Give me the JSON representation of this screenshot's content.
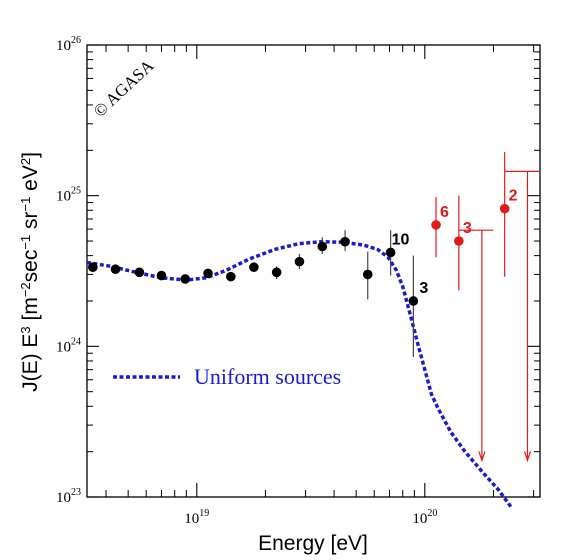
{
  "chart_data": {
    "type": "scatter",
    "watermark": "© AGASA",
    "xlabel": "Energy [eV]",
    "ylabel": {
      "prefix": "J(E) E",
      "prefix_sup": "3",
      "open": " [m",
      "open_sup": "−2",
      "mid1": "sec",
      "mid1_sup": "−1",
      "mid2": " sr",
      "mid2_sup": "−1",
      "mid3": " eV",
      "mid3_sup": "2",
      "close": "]"
    },
    "x_scale": "log",
    "y_scale": "log",
    "xlim": [
      3.3e+18,
      3.2e+20
    ],
    "ylim": [
      1e+23,
      1e+26
    ],
    "x_ticks": [
      {
        "value": 1e+19,
        "base": "10",
        "exp": "19"
      },
      {
        "value": 1e+20,
        "base": "10",
        "exp": "20"
      }
    ],
    "y_ticks": [
      {
        "value": 1e+23,
        "base": "10",
        "exp": "23"
      },
      {
        "value": 1e+24,
        "base": "10",
        "exp": "24"
      },
      {
        "value": 1e+25,
        "base": "10",
        "exp": "25"
      },
      {
        "value": 1e+26,
        "base": "10",
        "exp": "26"
      }
    ],
    "grid": false,
    "legend": [
      {
        "label": "Uniform sources",
        "style": "dotted",
        "color": "#1a1ad6"
      }
    ],
    "curve": {
      "name": "Uniform sources",
      "color": "#1a1ad6",
      "x": [
        3.3e+18,
        4.2e+18,
        5.4e+18,
        7e+18,
        9e+18,
        1.1e+19,
        1.35e+19,
        1.7e+19,
        2.2e+19,
        2.8e+19,
        3.5e+19,
        4.4e+19,
        5.4e+19,
        6.2e+19,
        6.9e+19,
        7.5e+19,
        8e+19,
        8.4e+19,
        8.8e+19,
        9.3e+19,
        1e+20,
        1.07e+20,
        1.15e+20,
        1.3e+20,
        1.5e+20,
        1.8e+20,
        2.1e+20,
        2.4e+20
      ],
      "y": [
        3.6e+24,
        3.4e+24,
        3.1e+24,
        2.85e+24,
        2.75e+24,
        2.85e+24,
        3.2e+24,
        3.8e+24,
        4.4e+24,
        4.8e+24,
        4.95e+24,
        4.9e+24,
        4.7e+24,
        4.4e+24,
        3.9e+24,
        3.2e+24,
        2.5e+24,
        1.9e+24,
        1.45e+24,
        1.05e+24,
        7e+23,
        4.8e+23,
        3.8e+23,
        2.7e+23,
        2e+23,
        1.45e+23,
        1.12e+23,
        8.5e+22
      ]
    },
    "data_points": [
      {
        "x": 3.5e+18,
        "y": 3.35e+24
      },
      {
        "x": 4.4e+18,
        "y": 3.25e+24
      },
      {
        "x": 5.6e+18,
        "y": 3.1e+24
      },
      {
        "x": 7e+18,
        "y": 2.95e+24
      },
      {
        "x": 8.9e+18,
        "y": 2.8e+24
      },
      {
        "x": 1.12e+19,
        "y": 3.05e+24
      },
      {
        "x": 1.41e+19,
        "y": 2.9e+24
      },
      {
        "x": 1.78e+19,
        "y": 3.35e+24
      },
      {
        "x": 2.24e+19,
        "y": 3.1e+24,
        "err_lo": 2.8e+24,
        "err_hi": 3.4e+24
      },
      {
        "x": 2.82e+19,
        "y": 3.65e+24,
        "err_lo": 3.25e+24,
        "err_hi": 4.1e+24
      },
      {
        "x": 3.55e+19,
        "y": 4.6e+24,
        "err_lo": 4.1e+24,
        "err_hi": 5.3e+24
      },
      {
        "x": 4.47e+19,
        "y": 4.95e+24,
        "err_lo": 4.3e+24,
        "err_hi": 5.9e+24
      },
      {
        "x": 5.62e+19,
        "y": 3e+24,
        "err_lo": 2.05e+24,
        "err_hi": 4.25e+24
      },
      {
        "x": 7.08e+19,
        "y": 4.2e+24,
        "err_lo": 2.95e+24,
        "err_hi": 5.9e+24,
        "label": "10"
      },
      {
        "x": 8.91e+19,
        "y": 2e+24,
        "err_lo": 8.5e+23,
        "err_hi": 4e+24,
        "label": "3"
      }
    ],
    "red_points": [
      {
        "x": 1.12e+20,
        "y": 6.4e+24,
        "err_lo": 3.9e+24,
        "err_hi": 9.8e+24,
        "label": "6"
      },
      {
        "x": 1.41e+20,
        "y": 5e+24,
        "err_lo": 2.35e+24,
        "err_hi": 1e+25,
        "label": "3"
      },
      {
        "x": 2.24e+20,
        "y": 8.2e+24,
        "err_lo": 2.9e+24,
        "err_hi": 1.95e+25,
        "label": "2"
      }
    ],
    "upper_limits": [
      {
        "x": 1.78e+20,
        "y": 5.9e+24,
        "x_from": 1.41e+20,
        "x_to": 2e+20,
        "arrow_to": 1.75e+23
      },
      {
        "x": 2.82e+20,
        "y": 1.45e+25,
        "x_from": 2.24e+20,
        "x_to": 3.2e+20,
        "arrow_to": 1.75e+23
      }
    ],
    "colors": {
      "black_points": "#000000",
      "red_points": "#e31a1a",
      "curve": "#1a1ad6"
    }
  }
}
